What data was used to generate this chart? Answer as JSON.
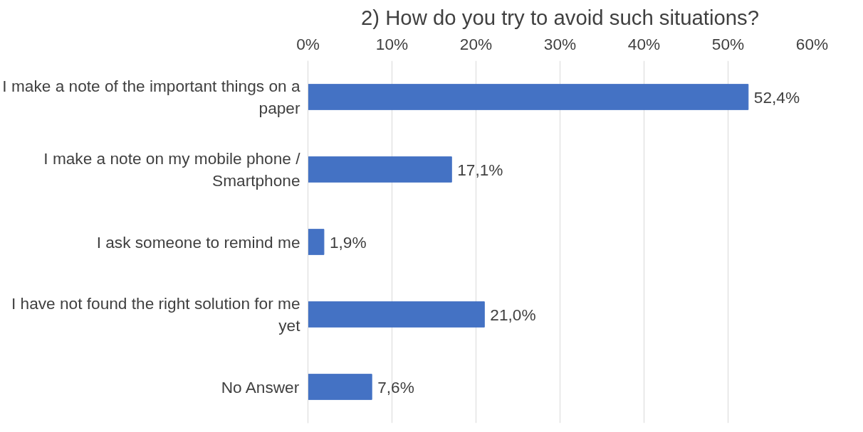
{
  "chart_data": {
    "type": "bar",
    "orientation": "horizontal",
    "title": "2) How do you try to avoid such situations?",
    "categories": [
      "I make a note of the important things on a paper",
      "I make a note on my mobile phone / Smartphone",
      "I ask someone to remind me",
      "I have not found the right solution for me yet",
      "No Answer"
    ],
    "values": [
      52.4,
      17.1,
      1.9,
      21.0,
      7.6
    ],
    "value_labels": [
      "52,4%",
      "17,1%",
      "1,9%",
      "21,0%",
      "7,6%"
    ],
    "color": "#4472c4",
    "xlim": [
      0,
      60
    ],
    "xticks": [
      {
        "value": 0,
        "label": "0%"
      },
      {
        "value": 10,
        "label": "10%"
      },
      {
        "value": 20,
        "label": "20%"
      },
      {
        "value": 30,
        "label": "30%"
      },
      {
        "value": 40,
        "label": "40%"
      },
      {
        "value": 50,
        "label": "50%"
      },
      {
        "value": 60,
        "label": "60%"
      }
    ],
    "grid": "x"
  }
}
